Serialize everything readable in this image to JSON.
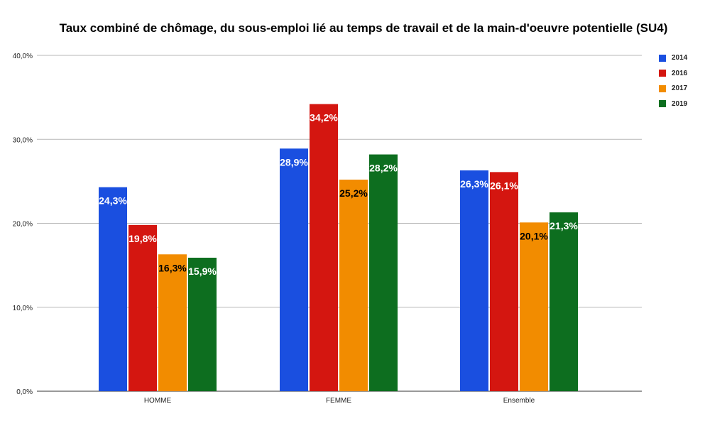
{
  "chart_data": {
    "type": "bar",
    "title": "Taux combiné de chômage, du sous-emploi lié au temps de travail et de la main-d'oeuvre potentielle (SU4)",
    "xlabel": "",
    "ylabel": "",
    "ylim": [
      0,
      40
    ],
    "yticks": [
      "0,0%",
      "10,0%",
      "20,0%",
      "30,0%",
      "40,0%"
    ],
    "categories": [
      "HOMME",
      "FEMME",
      "Ensemble"
    ],
    "grid": true,
    "legend_position": "right",
    "series": [
      {
        "name": "2014",
        "color": "#1a4fe0",
        "label_color": "#ffffff",
        "values": [
          24.3,
          28.9,
          26.3
        ],
        "labels": [
          "24,3%",
          "28,9%",
          "26,3%"
        ]
      },
      {
        "name": "2016",
        "color": "#d41610",
        "label_color": "#ffffff",
        "values": [
          19.8,
          34.2,
          26.1
        ],
        "labels": [
          "19,8%",
          "34,2%",
          "26,1%"
        ]
      },
      {
        "name": "2017",
        "color": "#f28c00",
        "label_color": "#000000",
        "values": [
          16.3,
          25.2,
          20.1
        ],
        "labels": [
          "16,3%",
          "25,2%",
          "20,1%"
        ]
      },
      {
        "name": "2019",
        "color": "#0d6e1f",
        "label_color": "#ffffff",
        "values": [
          15.9,
          28.2,
          21.3
        ],
        "labels": [
          "15,9%",
          "28,2%",
          "21,3%"
        ]
      }
    ]
  }
}
